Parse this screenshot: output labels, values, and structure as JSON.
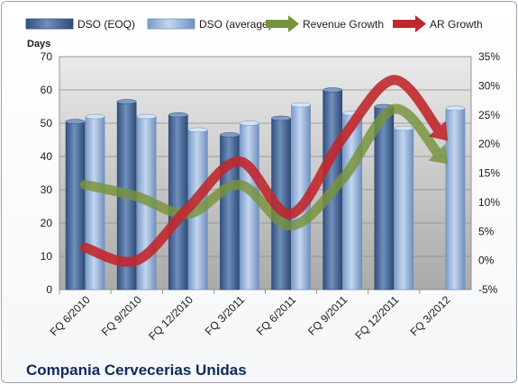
{
  "chart_data": {
    "type": "bar",
    "title": "Compania Cervecerias Unidas",
    "ylabel": "Days",
    "categories": [
      "FQ 6/2010",
      "FQ 9/2010",
      "FQ 12/2010",
      "FQ 3/2011",
      "FQ 6/2011",
      "FQ 9/2011",
      "FQ 12/2011",
      "FQ 3/2012"
    ],
    "y_left": {
      "min": 0,
      "max": 70,
      "step": 10,
      "ticks": [
        "0",
        "10",
        "20",
        "30",
        "40",
        "50",
        "60",
        "70"
      ]
    },
    "y_right": {
      "min": -5,
      "max": 35,
      "step": 5,
      "ticks": [
        "-5%",
        "0%",
        "5%",
        "10%",
        "15%",
        "20%",
        "25%",
        "30%",
        "35%"
      ]
    },
    "grid": true,
    "legend_position": "top",
    "series": [
      {
        "name": "DSO (EOQ)",
        "kind": "bar",
        "axis": "left",
        "color": "#4a6a9c",
        "values": [
          50.5,
          56.5,
          52.5,
          46.5,
          51.5,
          60,
          55,
          null
        ]
      },
      {
        "name": "DSO (average)",
        "kind": "bar",
        "axis": "left",
        "color": "#95b3d7",
        "values": [
          52,
          52,
          48,
          50,
          55.5,
          53,
          48.5,
          54.5
        ]
      },
      {
        "name": "Revenue Growth",
        "kind": "arrow-line",
        "axis": "right",
        "color": "#77933c",
        "values": [
          13,
          11,
          8,
          13,
          6,
          14,
          26,
          17
        ]
      },
      {
        "name": "AR Growth",
        "kind": "arrow-line",
        "axis": "right",
        "color": "#c0282d",
        "values": [
          2.2,
          0,
          9,
          17,
          8,
          21,
          31,
          21
        ]
      }
    ]
  }
}
